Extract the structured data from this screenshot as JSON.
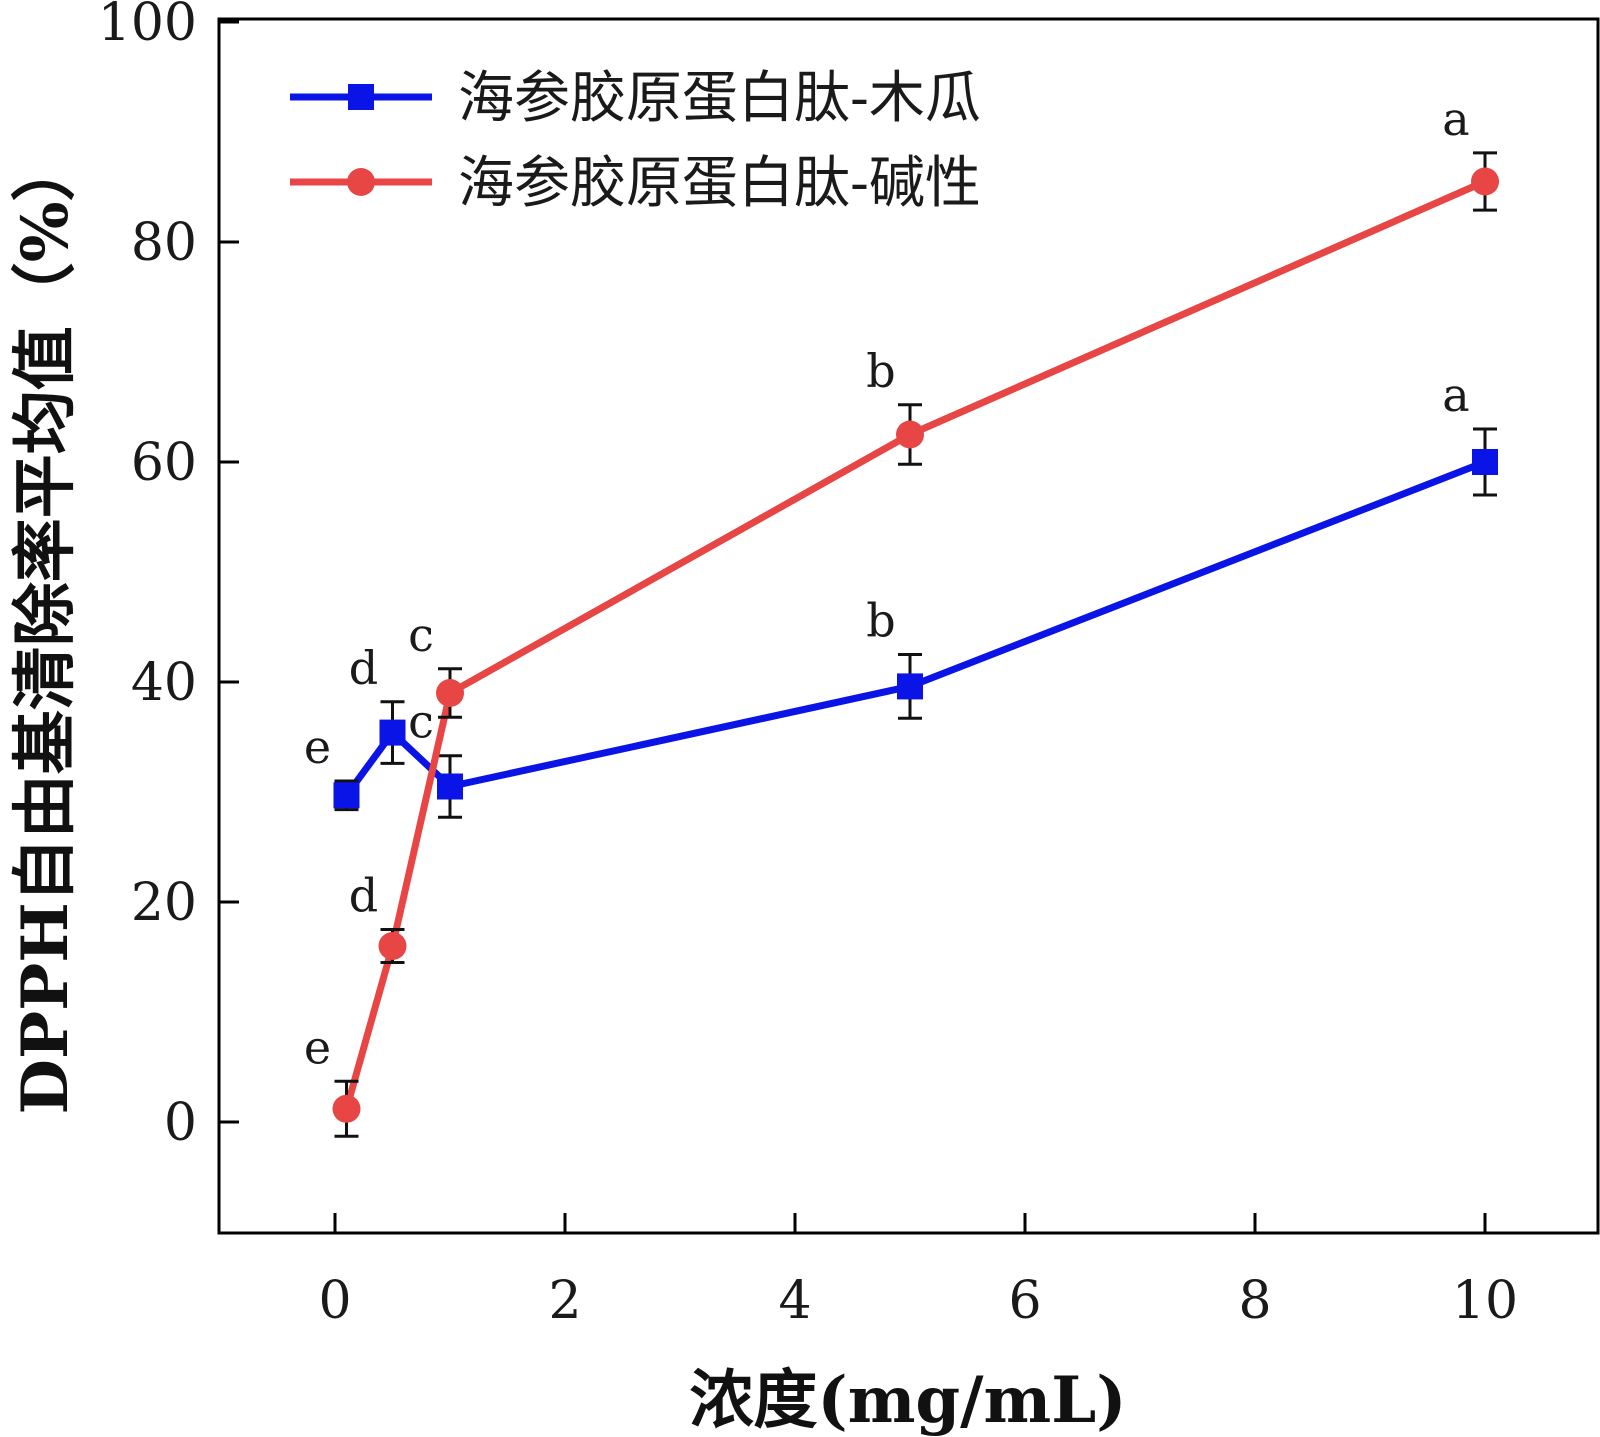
{
  "chart_data": {
    "type": "line",
    "title": "",
    "xlabel": "浓度(mg/mL)",
    "ylabel": "DPPH自由基清除率平均值（%）",
    "xlim": [
      -1,
      10.8
    ],
    "ylim": [
      -10,
      100
    ],
    "xticks": [
      0,
      2,
      4,
      6,
      8,
      10
    ],
    "yticks": [
      0,
      20,
      40,
      60,
      80,
      100
    ],
    "grid": false,
    "legend_position": "top-left",
    "series": [
      {
        "name": "海参胶原蛋白肽-木瓜",
        "color": "#0a14e6",
        "marker": "square",
        "x": [
          0.1,
          0.5,
          1,
          5,
          10
        ],
        "y": [
          29.7,
          35.4,
          30.5,
          39.6,
          60.0
        ],
        "err": [
          1.3,
          2.8,
          2.8,
          2.9,
          3.0
        ],
        "labels": [
          "e",
          "d",
          "c",
          "b",
          "a"
        ]
      },
      {
        "name": "海参胶原蛋白肽-碱性",
        "color": "#e84545",
        "marker": "circle",
        "x": [
          0.1,
          0.5,
          1,
          5,
          10
        ],
        "y": [
          1.2,
          16.0,
          39.0,
          62.5,
          85.5
        ],
        "err": [
          2.5,
          1.5,
          2.2,
          2.7,
          2.6
        ],
        "labels": [
          "e",
          "d",
          "c",
          "b",
          "a"
        ]
      }
    ]
  }
}
